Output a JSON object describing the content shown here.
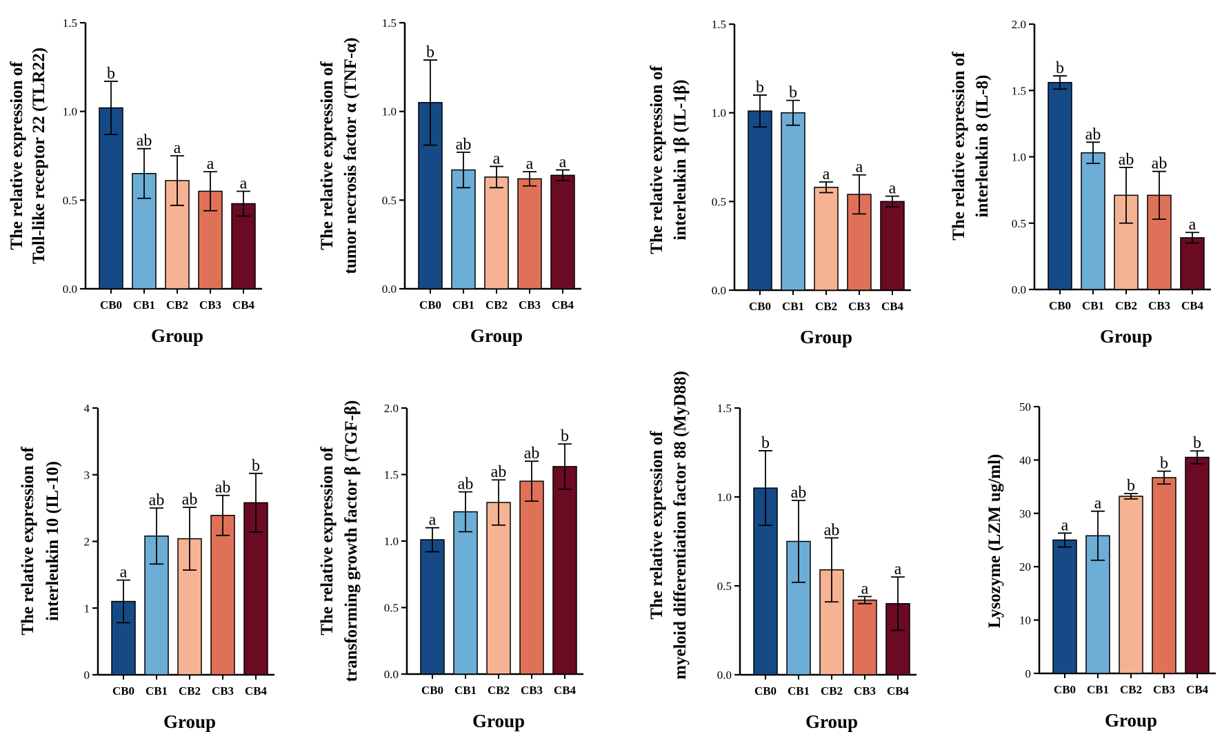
{
  "figure": {
    "colors": {
      "CB0": "#154a86",
      "CB1": "#6caed6",
      "CB2": "#f6b393",
      "CB3": "#e07159",
      "CB4": "#6b0b23"
    }
  },
  "chart_data": [
    {
      "type": "bar",
      "title": "",
      "xlabel": "Group",
      "ylabel_lines": [
        "The relative expression of",
        "Toll-like receptor 22 (TLR22)"
      ],
      "categories": [
        "CB0",
        "CB1",
        "CB2",
        "CB3",
        "CB4"
      ],
      "values": [
        1.02,
        0.65,
        0.61,
        0.55,
        0.48
      ],
      "errors": [
        0.15,
        0.14,
        0.14,
        0.11,
        0.07
      ],
      "significance": [
        "b",
        "ab",
        "a",
        "a",
        "a"
      ],
      "ylim": [
        0,
        1.5
      ],
      "yticks": [
        "0.0",
        "0.5",
        "1.0",
        "1.5"
      ]
    },
    {
      "type": "bar",
      "title": "",
      "xlabel": "Group",
      "ylabel_lines": [
        "The relative expression of",
        "tumor necrosis factor α (TNF-α)"
      ],
      "categories": [
        "CB0",
        "CB1",
        "CB2",
        "CB3",
        "CB4"
      ],
      "values": [
        1.05,
        0.67,
        0.63,
        0.62,
        0.64
      ],
      "errors": [
        0.24,
        0.1,
        0.06,
        0.04,
        0.03
      ],
      "significance": [
        "b",
        "ab",
        "a",
        "a",
        "a"
      ],
      "ylim": [
        0,
        1.5
      ],
      "yticks": [
        "0.0",
        "0.5",
        "1.0",
        "1.5"
      ]
    },
    {
      "type": "bar",
      "title": "",
      "xlabel": "Group",
      "ylabel_lines": [
        "The relative expression of",
        "interleukin 1β (IL-1β)"
      ],
      "categories": [
        "CB0",
        "CB1",
        "CB2",
        "CB3",
        "CB4"
      ],
      "values": [
        1.01,
        1.0,
        0.58,
        0.54,
        0.5
      ],
      "errors": [
        0.09,
        0.07,
        0.03,
        0.11,
        0.03
      ],
      "significance": [
        "b",
        "b",
        "a",
        "a",
        "a"
      ],
      "ylim": [
        0,
        1.5
      ],
      "yticks": [
        "0.0",
        "0.5",
        "1.0",
        "1.5"
      ]
    },
    {
      "type": "bar",
      "title": "",
      "xlabel": "Group",
      "ylabel_lines": [
        "The relative expression of",
        "interleukin 8 (IL-8)"
      ],
      "categories": [
        "CB0",
        "CB1",
        "CB2",
        "CB3",
        "CB4"
      ],
      "values": [
        1.56,
        1.03,
        0.71,
        0.71,
        0.39
      ],
      "errors": [
        0.05,
        0.08,
        0.21,
        0.18,
        0.04
      ],
      "significance": [
        "b",
        "ab",
        "ab",
        "ab",
        "a"
      ],
      "ylim": [
        0,
        2.0
      ],
      "yticks": [
        "0.0",
        "0.5",
        "1.0",
        "1.5",
        "2.0"
      ]
    },
    {
      "type": "bar",
      "title": "",
      "xlabel": "Group",
      "ylabel_lines": [
        "The relative expression of",
        "interleukin 10 (IL-10)"
      ],
      "categories": [
        "CB0",
        "CB1",
        "CB2",
        "CB3",
        "CB4"
      ],
      "values": [
        1.1,
        2.08,
        2.04,
        2.39,
        2.58
      ],
      "errors": [
        0.32,
        0.42,
        0.47,
        0.3,
        0.44
      ],
      "significance": [
        "a",
        "ab",
        "ab",
        "ab",
        "b"
      ],
      "ylim": [
        0,
        4
      ],
      "yticks": [
        "0",
        "1",
        "2",
        "3",
        "4"
      ]
    },
    {
      "type": "bar",
      "title": "",
      "xlabel": "Group",
      "ylabel_lines": [
        "The relative expression of",
        "transforming growth factor β (TGF-β)"
      ],
      "categories": [
        "CB0",
        "CB1",
        "CB2",
        "CB3",
        "CB4"
      ],
      "values": [
        1.01,
        1.22,
        1.29,
        1.45,
        1.56
      ],
      "errors": [
        0.09,
        0.15,
        0.17,
        0.15,
        0.17
      ],
      "significance": [
        "a",
        "ab",
        "ab",
        "ab",
        "b"
      ],
      "ylim": [
        0,
        2.0
      ],
      "yticks": [
        "0.0",
        "0.5",
        "1.0",
        "1.5",
        "2.0"
      ]
    },
    {
      "type": "bar",
      "title": "",
      "xlabel": "Group",
      "ylabel_lines": [
        "The relative expression of",
        "myeloid differentiation factor 88 (MyD88)"
      ],
      "categories": [
        "CB0",
        "CB1",
        "CB2",
        "CB3",
        "CB4"
      ],
      "values": [
        1.05,
        0.75,
        0.59,
        0.42,
        0.4
      ],
      "errors": [
        0.21,
        0.23,
        0.18,
        0.02,
        0.15
      ],
      "significance": [
        "b",
        "ab",
        "ab",
        "a",
        "a"
      ],
      "ylim": [
        0,
        1.5
      ],
      "yticks": [
        "0.0",
        "0.5",
        "1.0",
        "1.5"
      ]
    },
    {
      "type": "bar",
      "title": "",
      "xlabel": "Group",
      "ylabel_lines": [
        "Lysozyme (LZM ug/ml)"
      ],
      "categories": [
        "CB0",
        "CB1",
        "CB2",
        "CB3",
        "CB4"
      ],
      "values": [
        25.0,
        25.8,
        33.2,
        36.7,
        40.5
      ],
      "errors": [
        1.3,
        4.6,
        0.5,
        1.2,
        1.2
      ],
      "significance": [
        "a",
        "a",
        "b",
        "b",
        "b"
      ],
      "ylim": [
        0,
        50
      ],
      "yticks": [
        "0",
        "10",
        "20",
        "30",
        "40",
        "50"
      ]
    }
  ]
}
